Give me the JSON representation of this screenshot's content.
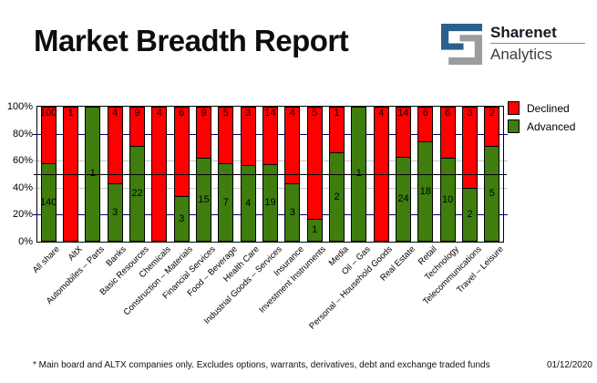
{
  "header": {
    "title": "Market Breadth Report",
    "logo": {
      "brand": "Sharenet",
      "sub": "Analytics",
      "blue": "#2d5f8c",
      "gray": "#9c9c9c"
    }
  },
  "legend": {
    "items": [
      {
        "label": "Declined",
        "color": "#ff0000"
      },
      {
        "label": "Advanced",
        "color": "#3e7d0e"
      }
    ]
  },
  "chart_data": {
    "type": "bar",
    "stacked": true,
    "units": "percent_of_total",
    "title": "",
    "xlabel": "",
    "ylabel": "",
    "ylim": [
      0,
      100
    ],
    "y_ticks": [
      "0%",
      "20%",
      "40%",
      "60%",
      "80%",
      "100%"
    ],
    "legend_position": "top-right",
    "grid": true,
    "categories": [
      "All share",
      "AltX",
      "Automobiles – Parts",
      "Banks",
      "Basic Resources",
      "Chemicals",
      "Construction – Materials",
      "Financial Services",
      "Food – Beverage",
      "Health Care",
      "Industrial Goods – Services",
      "Insurance",
      "Investment Instruments",
      "Media",
      "Oil – Gas",
      "Personal – Household Goods",
      "Real Estate",
      "Retail",
      "Technology",
      "Telecommunications",
      "Travel – Leisure"
    ],
    "series": [
      {
        "name": "Declined",
        "color": "#ff0000",
        "values": [
          100,
          1,
          0,
          4,
          9,
          4,
          6,
          9,
          5,
          3,
          14,
          4,
          5,
          1,
          0,
          4,
          14,
          6,
          6,
          3,
          2
        ]
      },
      {
        "name": "Advanced",
        "color": "#3e7d0e",
        "values": [
          140,
          0,
          1,
          3,
          22,
          0,
          3,
          15,
          7,
          4,
          19,
          3,
          1,
          2,
          1,
          0,
          24,
          18,
          10,
          2,
          5
        ]
      }
    ],
    "gridlines": [
      {
        "pct": 20,
        "color": "#000080",
        "over_bars": false
      },
      {
        "pct": 40,
        "color": "#c8c8c8",
        "over_bars": false
      },
      {
        "pct": 50,
        "color": "#000000",
        "over_bars": true
      },
      {
        "pct": 60,
        "color": "#c8c8c8",
        "over_bars": false
      },
      {
        "pct": 80,
        "color": "#000080",
        "over_bars": false
      }
    ]
  },
  "footer": {
    "note": "* Main board and ALTX companies only. Excludes options, warrants, derivatives, debt and exchange traded funds",
    "date": "01/12/2020"
  }
}
